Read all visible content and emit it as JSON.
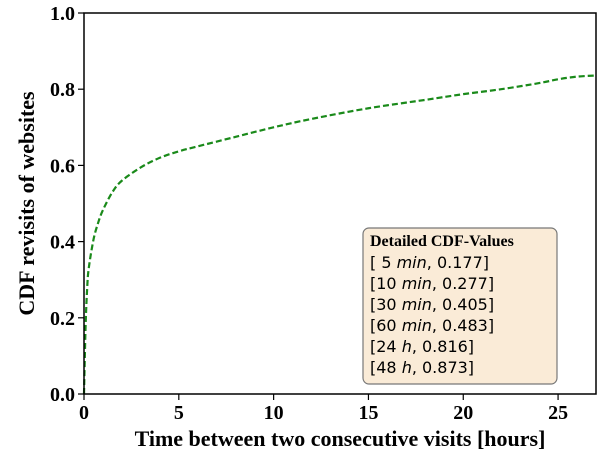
{
  "chart_data": {
    "type": "line",
    "xlabel": "Time between two consecutive visits [hours]",
    "ylabel": "CDF revisits of websites",
    "xlim": [
      0,
      27
    ],
    "ylim": [
      0.0,
      1.0
    ],
    "x_ticks": [
      "0",
      "5",
      "10",
      "15",
      "20",
      "25"
    ],
    "x_tick_values": [
      0,
      5,
      10,
      15,
      20,
      25
    ],
    "y_ticks": [
      "0.0",
      "0.2",
      "0.4",
      "0.6",
      "0.8",
      "1.0"
    ],
    "y_tick_values": [
      0.0,
      0.2,
      0.4,
      0.6,
      0.8,
      1.0
    ],
    "grid": false,
    "series": [
      {
        "color": "#1a8a1a",
        "style": "dashed",
        "x": [
          0,
          0.0833,
          0.1667,
          0.25,
          0.5,
          0.75,
          1.0,
          1.5,
          2,
          3,
          4,
          5,
          6,
          8,
          10,
          12,
          15,
          18,
          20,
          22,
          24,
          25,
          26,
          27
        ],
        "y": [
          0.0,
          0.177,
          0.277,
          0.33,
          0.405,
          0.45,
          0.483,
          0.53,
          0.56,
          0.595,
          0.62,
          0.637,
          0.65,
          0.675,
          0.7,
          0.722,
          0.75,
          0.772,
          0.787,
          0.8,
          0.816,
          0.826,
          0.833,
          0.836
        ]
      }
    ],
    "legend": {
      "title": "Detailed CDF-Values",
      "placement": "lower-right",
      "background": "#faebd7",
      "border": "#777777",
      "rows": [
        {
          "open": "[  5 ",
          "unit": "min",
          "value": ", 0.177]"
        },
        {
          "open": "[10 ",
          "unit": "min",
          "value": ", 0.277]"
        },
        {
          "open": "[30 ",
          "unit": "min",
          "value": ", 0.405]"
        },
        {
          "open": "[60 ",
          "unit": "min",
          "value": ", 0.483]"
        },
        {
          "open": "[24 ",
          "unit": "h",
          "value": ",      0.816]"
        },
        {
          "open": "[48 ",
          "unit": "h",
          "value": ",      0.873]"
        }
      ]
    }
  }
}
